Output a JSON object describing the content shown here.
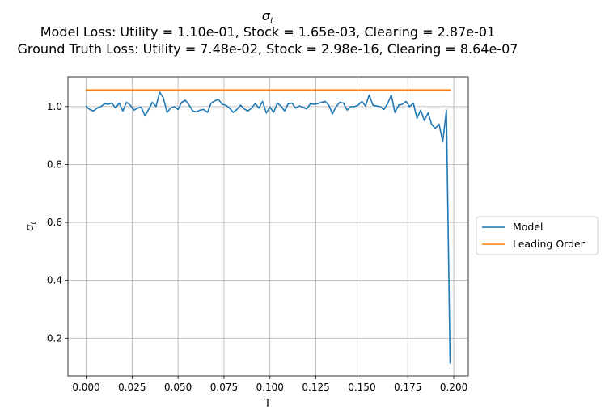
{
  "chart_data": {
    "type": "line",
    "title_symbol": "σ",
    "title_subscript": "t",
    "title_lines": [
      "Model Loss: Utility = 1.10e-01, Stock = 1.65e-03, Clearing = 2.87e-01",
      "Ground Truth Loss: Utility = 7.48e-02, Stock = 2.98e-16, Clearing = 8.64e-07"
    ],
    "xlabel": "T",
    "ylabel_symbol": "σ",
    "ylabel_subscript": "t",
    "xlim": [
      -0.0099,
      0.2079
    ],
    "ylim": [
      0.0695,
      1.103
    ],
    "xticks": [
      0.0,
      0.025,
      0.05,
      0.075,
      0.1,
      0.125,
      0.15,
      0.175,
      0.2
    ],
    "xtick_labels": [
      "0.000",
      "0.025",
      "0.050",
      "0.075",
      "0.100",
      "0.125",
      "0.150",
      "0.175",
      "0.200"
    ],
    "yticks": [
      0.2,
      0.4,
      0.6,
      0.8,
      1.0
    ],
    "ytick_labels": [
      "0.2",
      "0.4",
      "0.6",
      "0.8",
      "1.0"
    ],
    "grid": true,
    "legend_position": "right-outside",
    "series": [
      {
        "name": "Model",
        "color": "#1f77b4",
        "x": [
          0.0,
          0.002,
          0.004,
          0.006,
          0.008,
          0.01,
          0.012,
          0.014,
          0.016,
          0.018,
          0.02,
          0.022,
          0.024,
          0.026,
          0.028,
          0.03,
          0.032,
          0.034,
          0.036,
          0.038,
          0.04,
          0.042,
          0.044,
          0.046,
          0.048,
          0.05,
          0.052,
          0.054,
          0.056,
          0.058,
          0.06,
          0.062,
          0.064,
          0.066,
          0.068,
          0.07,
          0.072,
          0.074,
          0.076,
          0.078,
          0.08,
          0.082,
          0.084,
          0.086,
          0.088,
          0.09,
          0.092,
          0.094,
          0.096,
          0.098,
          0.1,
          0.102,
          0.104,
          0.106,
          0.108,
          0.11,
          0.112,
          0.114,
          0.116,
          0.118,
          0.12,
          0.122,
          0.124,
          0.126,
          0.128,
          0.13,
          0.132,
          0.134,
          0.136,
          0.138,
          0.14,
          0.142,
          0.144,
          0.146,
          0.148,
          0.15,
          0.152,
          0.154,
          0.156,
          0.158,
          0.16,
          0.162,
          0.164,
          0.166,
          0.168,
          0.17,
          0.172,
          0.174,
          0.176,
          0.178,
          0.18,
          0.182,
          0.184,
          0.186,
          0.188,
          0.19,
          0.192,
          0.194,
          0.196,
          0.198
        ],
        "y": [
          1.0,
          0.99,
          0.985,
          0.995,
          1.0,
          1.01,
          1.008,
          1.012,
          0.995,
          1.012,
          0.985,
          1.015,
          1.005,
          0.988,
          0.995,
          0.998,
          0.968,
          0.99,
          1.015,
          1.0,
          1.05,
          1.03,
          0.98,
          0.995,
          1.0,
          0.99,
          1.015,
          1.022,
          1.005,
          0.985,
          0.982,
          0.988,
          0.99,
          0.98,
          1.012,
          1.02,
          1.025,
          1.008,
          1.005,
          0.995,
          0.98,
          0.99,
          1.005,
          0.992,
          0.985,
          0.995,
          1.01,
          0.995,
          1.018,
          0.978,
          0.998,
          0.98,
          1.012,
          1.002,
          0.985,
          1.01,
          1.012,
          0.995,
          1.002,
          0.998,
          0.992,
          1.01,
          1.008,
          1.01,
          1.015,
          1.018,
          1.005,
          0.975,
          1.0,
          1.015,
          1.012,
          0.988,
          1.0,
          1.0,
          1.005,
          1.018,
          1.002,
          1.04,
          1.005,
          1.002,
          1.0,
          0.99,
          1.01,
          1.04,
          0.98,
          1.005,
          1.008,
          1.018,
          1.0,
          1.012,
          0.96,
          0.988,
          0.952,
          0.978,
          0.938,
          0.925,
          0.94,
          0.878,
          0.988,
          0.115
        ]
      },
      {
        "name": "Leading Order",
        "color": "#ff7f0e",
        "x": [
          0.0,
          0.198
        ],
        "y": [
          1.0575,
          1.0575
        ]
      }
    ]
  }
}
